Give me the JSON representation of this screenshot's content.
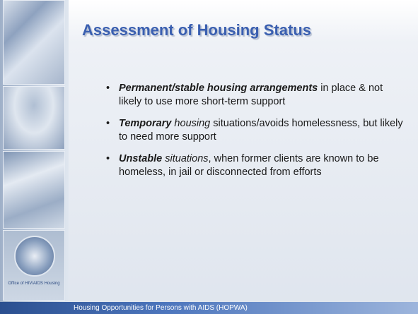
{
  "title": "Assessment of Housing Status",
  "logo_caption": "Office of HIV/AIDS Housing",
  "bullets": [
    [
      "Permanent/stable housing arrangements",
      " in place & not likely to use more short-term support"
    ],
    [
      "Temporary",
      " housing",
      " situations/avoids homelessness, but likely to need more support"
    ],
    [
      "Unstable",
      " situations",
      ", when former clients are known to be homeless, in jail or disconnected from efforts"
    ]
  ],
  "footer": "Housing Opportunities for Persons with AIDS (HOPWA)"
}
